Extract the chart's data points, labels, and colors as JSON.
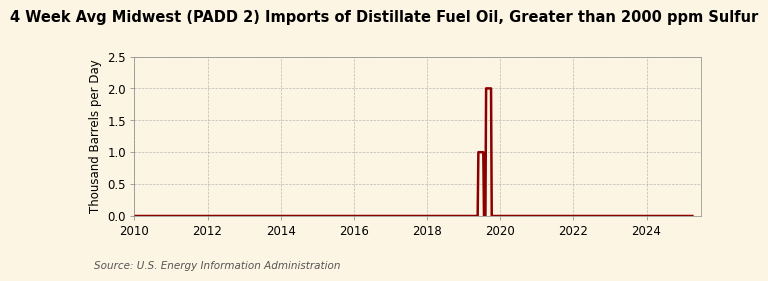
{
  "title": "4 Week Avg Midwest (PADD 2) Imports of Distillate Fuel Oil, Greater than 2000 ppm Sulfur",
  "ylabel": "Thousand Barrels per Day",
  "source": "Source: U.S. Energy Information Administration",
  "background_color": "#fdf5e4",
  "line_color": "#8b0000",
  "xlim": [
    2010,
    2025.5
  ],
  "ylim": [
    0.0,
    2.5
  ],
  "xticks": [
    2010,
    2012,
    2014,
    2016,
    2018,
    2020,
    2022,
    2024
  ],
  "yticks": [
    0.0,
    0.5,
    1.0,
    1.5,
    2.0,
    2.5
  ],
  "title_fontsize": 10.5,
  "label_fontsize": 8.5,
  "source_fontsize": 7.5,
  "segment_y1_x_start": 2019.4,
  "segment_y1_x_end": 2019.55,
  "segment_y1": 1.0,
  "segment_gap_x": 2019.58,
  "segment_y2_x_start": 2019.61,
  "segment_y2_x_end": 2019.76,
  "segment_y2": 2.0,
  "baseline_x_start": 2010.0,
  "baseline_x_end": 2025.2
}
